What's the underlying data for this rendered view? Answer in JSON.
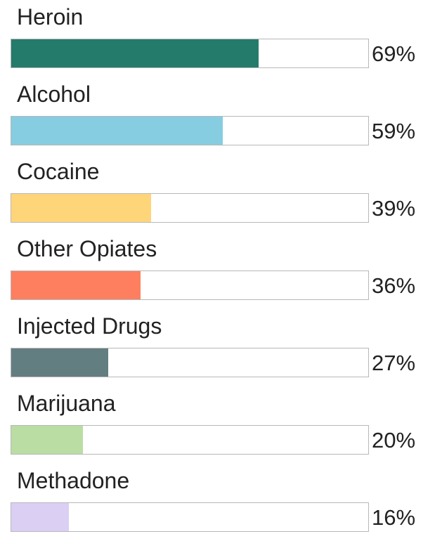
{
  "chart_data": {
    "type": "bar",
    "orientation": "horizontal",
    "categories": [
      "Heroin",
      "Alcohol",
      "Cocaine",
      "Other Opiates",
      "Injected Drugs",
      "Marijuana",
      "Methadone"
    ],
    "values": [
      69,
      59,
      39,
      36,
      27,
      20,
      16
    ],
    "value_labels": [
      "69%",
      "59%",
      "39%",
      "36%",
      "27%",
      "20%",
      "16%"
    ],
    "colors": [
      "#247b6c",
      "#86cde1",
      "#ffd57a",
      "#fd7f5f",
      "#637e80",
      "#badda3",
      "#dbcff4"
    ],
    "xlim": [
      0,
      100
    ],
    "unit": "%",
    "grid": false
  }
}
